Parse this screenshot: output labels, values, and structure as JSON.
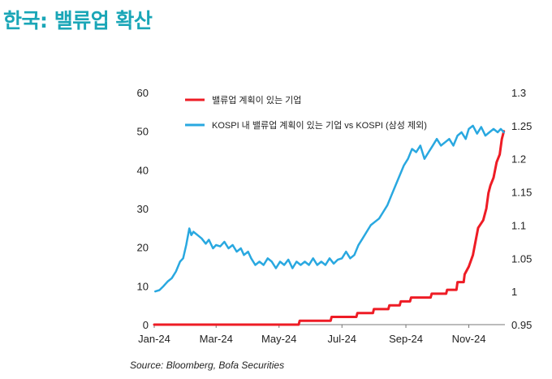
{
  "header": {
    "title": "한국: 밸류업 확산"
  },
  "source": "Source: Bloomberg, Bofa Securities",
  "colors": {
    "title": "#1aa6b7",
    "red_series": "#ee1c25",
    "blue_series": "#29a8e0"
  },
  "chart_data": {
    "type": "line",
    "legend_placement": "top-left",
    "x_tick_labels": [
      "Jan-24",
      "Mar-24",
      "May-24",
      "Jul-24",
      "Sep-24",
      "Nov-24"
    ],
    "x_ticks": [
      "2024-01-01",
      "2024-03-01",
      "2024-05-01",
      "2024-07-01",
      "2024-09-01",
      "2024-11-01"
    ],
    "xlim": [
      "2024-01-01",
      "2024-12-06"
    ],
    "y_left": {
      "range": [
        0,
        60
      ],
      "ticks": [
        "0",
        "10",
        "20",
        "30",
        "40",
        "50",
        "60"
      ]
    },
    "y_right": {
      "range": [
        0.95,
        1.3
      ],
      "ticks": [
        "0.95",
        "1",
        "1.05",
        "1.1",
        "1.15",
        "1.2",
        "1.25",
        "1.3"
      ]
    },
    "grid": false,
    "series": [
      {
        "name": "밸류업 계획이 있는 기업",
        "axis": "left",
        "color": "#ee1c25",
        "points": [
          [
            "2024-01-01",
            0
          ],
          [
            "2024-05-20",
            0
          ],
          [
            "2024-05-21",
            1
          ],
          [
            "2024-06-20",
            1
          ],
          [
            "2024-06-21",
            2
          ],
          [
            "2024-07-15",
            2
          ],
          [
            "2024-07-16",
            3
          ],
          [
            "2024-07-31",
            3
          ],
          [
            "2024-08-01",
            4
          ],
          [
            "2024-08-15",
            4
          ],
          [
            "2024-08-16",
            5
          ],
          [
            "2024-08-26",
            5
          ],
          [
            "2024-08-27",
            6
          ],
          [
            "2024-09-05",
            6
          ],
          [
            "2024-09-06",
            7
          ],
          [
            "2024-09-25",
            7
          ],
          [
            "2024-09-26",
            8
          ],
          [
            "2024-10-10",
            8
          ],
          [
            "2024-10-11",
            9
          ],
          [
            "2024-10-20",
            9
          ],
          [
            "2024-10-21",
            11
          ],
          [
            "2024-10-27",
            11
          ],
          [
            "2024-10-28",
            13
          ],
          [
            "2024-11-01",
            15
          ],
          [
            "2024-11-05",
            18
          ],
          [
            "2024-11-10",
            25
          ],
          [
            "2024-11-15",
            27
          ],
          [
            "2024-11-18",
            30
          ],
          [
            "2024-11-20",
            34
          ],
          [
            "2024-11-22",
            36
          ],
          [
            "2024-11-25",
            38
          ],
          [
            "2024-11-28",
            42
          ],
          [
            "2024-12-01",
            44
          ],
          [
            "2024-12-03",
            48
          ],
          [
            "2024-12-05",
            50
          ]
        ]
      },
      {
        "name": "KOSPI 내 밸류업 계획이 있는 기업 vs KOSPI (삼성 제외)",
        "axis": "right",
        "color": "#29a8e0",
        "points": [
          [
            "2024-01-02",
            1.0
          ],
          [
            "2024-01-06",
            1.002
          ],
          [
            "2024-01-10",
            1.008
          ],
          [
            "2024-01-14",
            1.015
          ],
          [
            "2024-01-18",
            1.02
          ],
          [
            "2024-01-22",
            1.03
          ],
          [
            "2024-01-26",
            1.045
          ],
          [
            "2024-01-29",
            1.05
          ],
          [
            "2024-02-01",
            1.07
          ],
          [
            "2024-02-04",
            1.095
          ],
          [
            "2024-02-06",
            1.085
          ],
          [
            "2024-02-08",
            1.09
          ],
          [
            "2024-02-12",
            1.085
          ],
          [
            "2024-02-16",
            1.08
          ],
          [
            "2024-02-20",
            1.072
          ],
          [
            "2024-02-23",
            1.078
          ],
          [
            "2024-02-27",
            1.065
          ],
          [
            "2024-03-01",
            1.07
          ],
          [
            "2024-03-05",
            1.068
          ],
          [
            "2024-03-09",
            1.075
          ],
          [
            "2024-03-13",
            1.065
          ],
          [
            "2024-03-17",
            1.07
          ],
          [
            "2024-03-21",
            1.06
          ],
          [
            "2024-03-25",
            1.065
          ],
          [
            "2024-03-28",
            1.055
          ],
          [
            "2024-04-01",
            1.06
          ],
          [
            "2024-04-04",
            1.05
          ],
          [
            "2024-04-08",
            1.04
          ],
          [
            "2024-04-12",
            1.045
          ],
          [
            "2024-04-16",
            1.04
          ],
          [
            "2024-04-20",
            1.05
          ],
          [
            "2024-04-24",
            1.045
          ],
          [
            "2024-04-28",
            1.035
          ],
          [
            "2024-05-02",
            1.045
          ],
          [
            "2024-05-06",
            1.04
          ],
          [
            "2024-05-10",
            1.048
          ],
          [
            "2024-05-14",
            1.035
          ],
          [
            "2024-05-18",
            1.045
          ],
          [
            "2024-05-22",
            1.04
          ],
          [
            "2024-05-26",
            1.045
          ],
          [
            "2024-05-30",
            1.04
          ],
          [
            "2024-06-03",
            1.05
          ],
          [
            "2024-06-07",
            1.04
          ],
          [
            "2024-06-11",
            1.045
          ],
          [
            "2024-06-15",
            1.04
          ],
          [
            "2024-06-19",
            1.05
          ],
          [
            "2024-06-23",
            1.042
          ],
          [
            "2024-06-27",
            1.048
          ],
          [
            "2024-07-01",
            1.05
          ],
          [
            "2024-07-05",
            1.06
          ],
          [
            "2024-07-09",
            1.05
          ],
          [
            "2024-07-13",
            1.055
          ],
          [
            "2024-07-17",
            1.07
          ],
          [
            "2024-07-21",
            1.08
          ],
          [
            "2024-07-25",
            1.09
          ],
          [
            "2024-07-29",
            1.1
          ],
          [
            "2024-08-02",
            1.105
          ],
          [
            "2024-08-06",
            1.11
          ],
          [
            "2024-08-10",
            1.12
          ],
          [
            "2024-08-14",
            1.13
          ],
          [
            "2024-08-18",
            1.145
          ],
          [
            "2024-08-22",
            1.16
          ],
          [
            "2024-08-26",
            1.175
          ],
          [
            "2024-08-30",
            1.19
          ],
          [
            "2024-09-03",
            1.2
          ],
          [
            "2024-09-07",
            1.215
          ],
          [
            "2024-09-11",
            1.21
          ],
          [
            "2024-09-15",
            1.22
          ],
          [
            "2024-09-19",
            1.2
          ],
          [
            "2024-09-23",
            1.21
          ],
          [
            "2024-09-27",
            1.22
          ],
          [
            "2024-10-01",
            1.23
          ],
          [
            "2024-10-05",
            1.22
          ],
          [
            "2024-10-09",
            1.225
          ],
          [
            "2024-10-13",
            1.23
          ],
          [
            "2024-10-17",
            1.22
          ],
          [
            "2024-10-21",
            1.235
          ],
          [
            "2024-10-25",
            1.24
          ],
          [
            "2024-10-29",
            1.23
          ],
          [
            "2024-11-01",
            1.245
          ],
          [
            "2024-11-05",
            1.25
          ],
          [
            "2024-11-09",
            1.238
          ],
          [
            "2024-11-13",
            1.248
          ],
          [
            "2024-11-17",
            1.235
          ],
          [
            "2024-11-21",
            1.24
          ],
          [
            "2024-11-25",
            1.245
          ],
          [
            "2024-11-29",
            1.24
          ],
          [
            "2024-12-02",
            1.245
          ],
          [
            "2024-12-05",
            1.24
          ]
        ]
      }
    ]
  }
}
